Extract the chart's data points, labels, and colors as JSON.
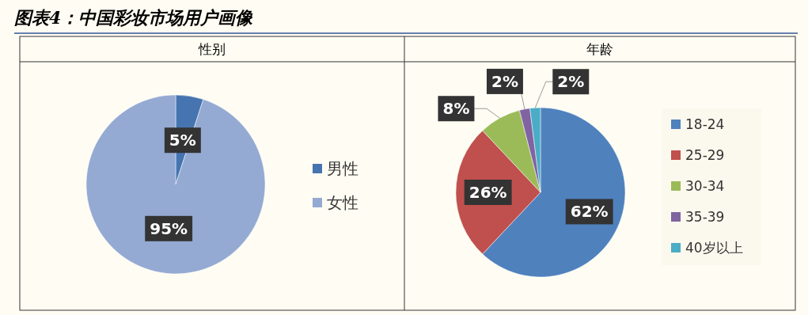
{
  "chart_data": [
    {
      "type": "pie",
      "title": "性别",
      "annotations": [
        "图表4：中国彩妆市场用户画像"
      ],
      "categories": [
        "男性",
        "女性"
      ],
      "values": [
        5,
        95
      ],
      "value_labels": [
        "5%",
        "95%"
      ],
      "colors": [
        "#4674b0",
        "#94aad3"
      ],
      "legend": "right"
    },
    {
      "type": "pie",
      "title": "年龄",
      "categories": [
        "18-24",
        "25-29",
        "30-34",
        "35-39",
        "40岁以上"
      ],
      "values": [
        62,
        26,
        8,
        2,
        2
      ],
      "value_labels": [
        "62%",
        "26%",
        "8%",
        "2%",
        "2%"
      ],
      "colors": [
        "#4f81bd",
        "#c0504d",
        "#9bbb59",
        "#8064a2",
        "#4bacc6"
      ],
      "legend": "right"
    }
  ]
}
